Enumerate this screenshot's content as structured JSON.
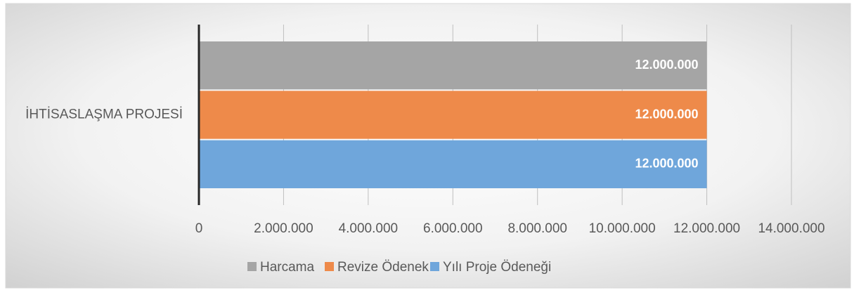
{
  "chart_data": {
    "type": "bar",
    "orientation": "horizontal",
    "categories": [
      "İHTİSASLAŞMA PROJESİ"
    ],
    "series": [
      {
        "name": "Harcama",
        "color": "#a5a5a5",
        "values": [
          12000000
        ],
        "value_labels": [
          "12.000.000"
        ]
      },
      {
        "name": "Revize Ödenek",
        "color": "#ee8a4a",
        "values": [
          12000000
        ],
        "value_labels": [
          "12.000.000"
        ]
      },
      {
        "name": "Yılı Proje Ödeneği",
        "color": "#6fa6db",
        "values": [
          12000000
        ],
        "value_labels": [
          "12.000.000"
        ]
      }
    ],
    "xlim": [
      0,
      14000000
    ],
    "xticks": [
      0,
      {
        "value": 2000000,
        "label": "2.000.000"
      },
      {
        "value": 4000000,
        "label": "4.000.000"
      },
      {
        "value": 6000000,
        "label": "6.000.000"
      },
      {
        "value": 8000000,
        "label": "8.000.000"
      },
      {
        "value": 10000000,
        "label": "10.000.000"
      },
      {
        "value": 12000000,
        "label": "12.000.000"
      },
      {
        "value": 14000000,
        "label": "14.000.000"
      }
    ],
    "grid": true,
    "legend": "bottom"
  }
}
